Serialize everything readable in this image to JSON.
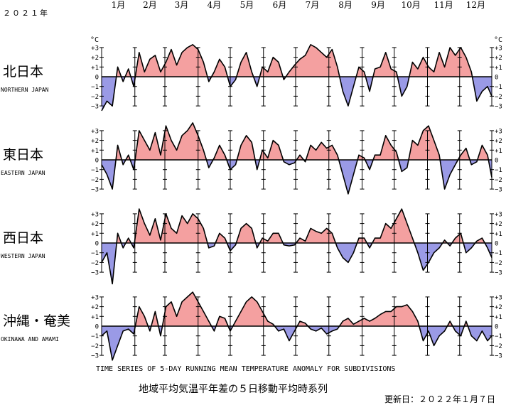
{
  "year_label": "２０２１年",
  "months": [
    "1月",
    "2月",
    "3月",
    "4月",
    "5月",
    "6月",
    "7月",
    "8月",
    "9月",
    "10月",
    "11月",
    "12月"
  ],
  "unit": "°C",
  "ytick_labels": [
    "+3",
    "+2",
    "+1",
    "0",
    "−1",
    "−2",
    "−3"
  ],
  "english_title": "TIME SERIES OF 5-DAY RUNNING MEAN TEMPERATURE ANOMALY FOR SUBDIVISIONS",
  "japanese_title": "地域平均気温平年差の５日移動平均時系列",
  "updated": "更新日：２０２２年１月７日",
  "colors": {
    "positive": "#f4a0a0",
    "negative": "#9a9ae6",
    "line": "#000000",
    "axis": "#000000"
  },
  "chart_data": [
    {
      "type": "area",
      "region_ja": "北日本",
      "region_en": "NORTHERN JAPAN",
      "ylim": [
        -3.5,
        3.5
      ],
      "x_unit": "day of 2021 (5-day running mean, sampled every 5 days)",
      "x": [
        1,
        6,
        11,
        16,
        21,
        26,
        31,
        36,
        41,
        46,
        51,
        56,
        61,
        66,
        71,
        76,
        81,
        86,
        91,
        96,
        101,
        106,
        111,
        116,
        121,
        126,
        131,
        136,
        141,
        146,
        151,
        156,
        161,
        166,
        171,
        176,
        181,
        186,
        191,
        196,
        201,
        206,
        211,
        216,
        221,
        226,
        231,
        236,
        241,
        246,
        251,
        256,
        261,
        266,
        271,
        276,
        281,
        286,
        291,
        296,
        301,
        306,
        311,
        316,
        321,
        326,
        331,
        336,
        341,
        346,
        351,
        356,
        361,
        365
      ],
      "values": [
        -3.5,
        -2.5,
        -3.0,
        1.0,
        -0.5,
        0.8,
        -1.0,
        2.5,
        0.5,
        1.8,
        2.2,
        0.5,
        1.5,
        2.8,
        1.2,
        2.5,
        3.0,
        3.3,
        2.8,
        1.5,
        -0.5,
        0.5,
        1.8,
        1.0,
        -1.0,
        -0.3,
        1.5,
        2.5,
        0.5,
        -1.0,
        1.0,
        0.5,
        2.0,
        1.5,
        -0.3,
        0.5,
        1.2,
        1.8,
        2.2,
        3.3,
        3.0,
        2.5,
        2.0,
        2.8,
        1.0,
        -1.5,
        -3.0,
        -1.0,
        1.0,
        0.5,
        -1.5,
        0.8,
        1.0,
        2.5,
        0.8,
        0.5,
        -2.0,
        -1.0,
        1.5,
        0.8,
        2.0,
        1.0,
        0.5,
        2.5,
        1.0,
        3.0,
        2.2,
        3.0,
        2.0,
        0.5,
        -2.5,
        -1.5,
        -1.0,
        -2.0
      ]
    },
    {
      "type": "area",
      "region_ja": "東日本",
      "region_en": "EASTERN JAPAN",
      "ylim": [
        -3.5,
        3.5
      ],
      "x_unit": "day of 2021 (5-day running mean, sampled every 5 days)",
      "x": [
        1,
        6,
        11,
        16,
        21,
        26,
        31,
        36,
        41,
        46,
        51,
        56,
        61,
        66,
        71,
        76,
        81,
        86,
        91,
        96,
        101,
        106,
        111,
        116,
        121,
        126,
        131,
        136,
        141,
        146,
        151,
        156,
        161,
        166,
        171,
        176,
        181,
        186,
        191,
        196,
        201,
        206,
        211,
        216,
        221,
        226,
        231,
        236,
        241,
        246,
        251,
        256,
        261,
        266,
        271,
        276,
        281,
        286,
        291,
        296,
        301,
        306,
        311,
        316,
        321,
        326,
        331,
        336,
        341,
        346,
        351,
        356,
        361,
        365
      ],
      "values": [
        -0.5,
        -1.5,
        -3.0,
        1.5,
        -0.5,
        0.5,
        -1.0,
        3.0,
        2.0,
        1.0,
        2.8,
        0.5,
        3.5,
        2.0,
        1.0,
        2.5,
        3.0,
        3.8,
        2.5,
        1.0,
        -0.8,
        0.2,
        1.5,
        0.5,
        -1.0,
        -0.5,
        1.5,
        2.5,
        1.8,
        -1.0,
        1.0,
        0.2,
        2.0,
        1.5,
        -0.2,
        -0.5,
        -0.3,
        0.5,
        -0.2,
        1.5,
        1.0,
        1.8,
        1.2,
        1.5,
        0.5,
        -1.5,
        -3.5,
        -1.5,
        0.5,
        0.2,
        -1.0,
        0.5,
        0.5,
        2.5,
        1.5,
        0.8,
        -1.2,
        -0.8,
        2.0,
        1.5,
        3.0,
        3.5,
        2.0,
        0.5,
        -3.0,
        -1.5,
        -0.5,
        0.5,
        1.2,
        -0.5,
        -0.2,
        1.5,
        0.5,
        -1.8
      ]
    },
    {
      "type": "area",
      "region_ja": "西日本",
      "region_en": "WESTERN JAPAN",
      "ylim": [
        -3.5,
        3.5
      ],
      "x_unit": "day of 2021 (5-day running mean, sampled every 5 days)",
      "x": [
        1,
        6,
        11,
        16,
        21,
        26,
        31,
        36,
        41,
        46,
        51,
        56,
        61,
        66,
        71,
        76,
        81,
        86,
        91,
        96,
        101,
        106,
        111,
        116,
        121,
        126,
        131,
        136,
        141,
        146,
        151,
        156,
        161,
        166,
        171,
        176,
        181,
        186,
        191,
        196,
        201,
        206,
        211,
        216,
        221,
        226,
        231,
        236,
        241,
        246,
        251,
        256,
        261,
        266,
        271,
        276,
        281,
        286,
        291,
        296,
        301,
        306,
        311,
        316,
        321,
        326,
        331,
        336,
        341,
        346,
        351,
        356,
        361,
        365
      ],
      "values": [
        -2.0,
        -1.0,
        -4.2,
        1.0,
        -0.5,
        0.5,
        -0.5,
        3.5,
        2.0,
        0.8,
        2.5,
        0.3,
        3.0,
        1.5,
        1.0,
        2.8,
        2.0,
        3.0,
        2.5,
        1.5,
        -0.5,
        -0.3,
        1.0,
        0.5,
        -0.8,
        -0.2,
        1.5,
        2.0,
        1.5,
        -0.5,
        0.5,
        0.2,
        1.0,
        1.0,
        -0.2,
        -0.3,
        -0.2,
        0.5,
        0.2,
        1.5,
        1.2,
        1.0,
        1.5,
        1.0,
        -0.5,
        -1.5,
        -2.0,
        -1.0,
        0.5,
        0.5,
        -0.5,
        0.5,
        0.5,
        2.0,
        1.5,
        2.5,
        3.5,
        2.0,
        0.5,
        -1.0,
        -2.8,
        -2.0,
        -1.0,
        -0.5,
        0.3,
        -0.3,
        0.5,
        1.0,
        -1.0,
        -0.5,
        0.2,
        0.5,
        -0.5,
        -1.5
      ]
    },
    {
      "type": "area",
      "region_ja": "沖縄・奄美",
      "region_en": "OKINAWA AND AMAMI",
      "ylim": [
        -3.5,
        3.5
      ],
      "x_unit": "day of 2021 (5-day running mean, sampled every 5 days)",
      "x": [
        1,
        6,
        11,
        16,
        21,
        26,
        31,
        36,
        41,
        46,
        51,
        56,
        61,
        66,
        71,
        76,
        81,
        86,
        91,
        96,
        101,
        106,
        111,
        116,
        121,
        126,
        131,
        136,
        141,
        146,
        151,
        156,
        161,
        166,
        171,
        176,
        181,
        186,
        191,
        196,
        201,
        206,
        211,
        216,
        221,
        226,
        231,
        236,
        241,
        246,
        251,
        256,
        261,
        266,
        271,
        276,
        281,
        286,
        291,
        296,
        301,
        306,
        311,
        316,
        321,
        326,
        331,
        336,
        341,
        346,
        351,
        356,
        361,
        365
      ],
      "values": [
        -1.0,
        -0.5,
        -3.5,
        -2.0,
        -0.5,
        -0.3,
        -0.8,
        2.0,
        1.0,
        -0.5,
        1.5,
        -1.0,
        2.0,
        2.5,
        1.0,
        2.5,
        3.0,
        3.5,
        2.5,
        1.5,
        0.5,
        -0.5,
        1.0,
        0.8,
        -0.5,
        0.5,
        1.5,
        2.5,
        3.0,
        2.5,
        1.5,
        0.5,
        0.2,
        -0.5,
        -0.3,
        -1.5,
        -0.5,
        0.5,
        0.3,
        -0.3,
        -0.5,
        -0.2,
        -0.8,
        -0.5,
        -0.3,
        0.5,
        0.8,
        0.2,
        0.5,
        0.8,
        0.5,
        0.8,
        1.2,
        1.5,
        1.5,
        2.0,
        2.0,
        2.2,
        1.5,
        0.5,
        -1.5,
        -0.5,
        -2.0,
        -1.0,
        -0.5,
        0.5,
        -0.5,
        -1.0,
        0.5,
        -1.0,
        -1.5,
        -0.5,
        -1.5,
        -1.0
      ]
    }
  ]
}
